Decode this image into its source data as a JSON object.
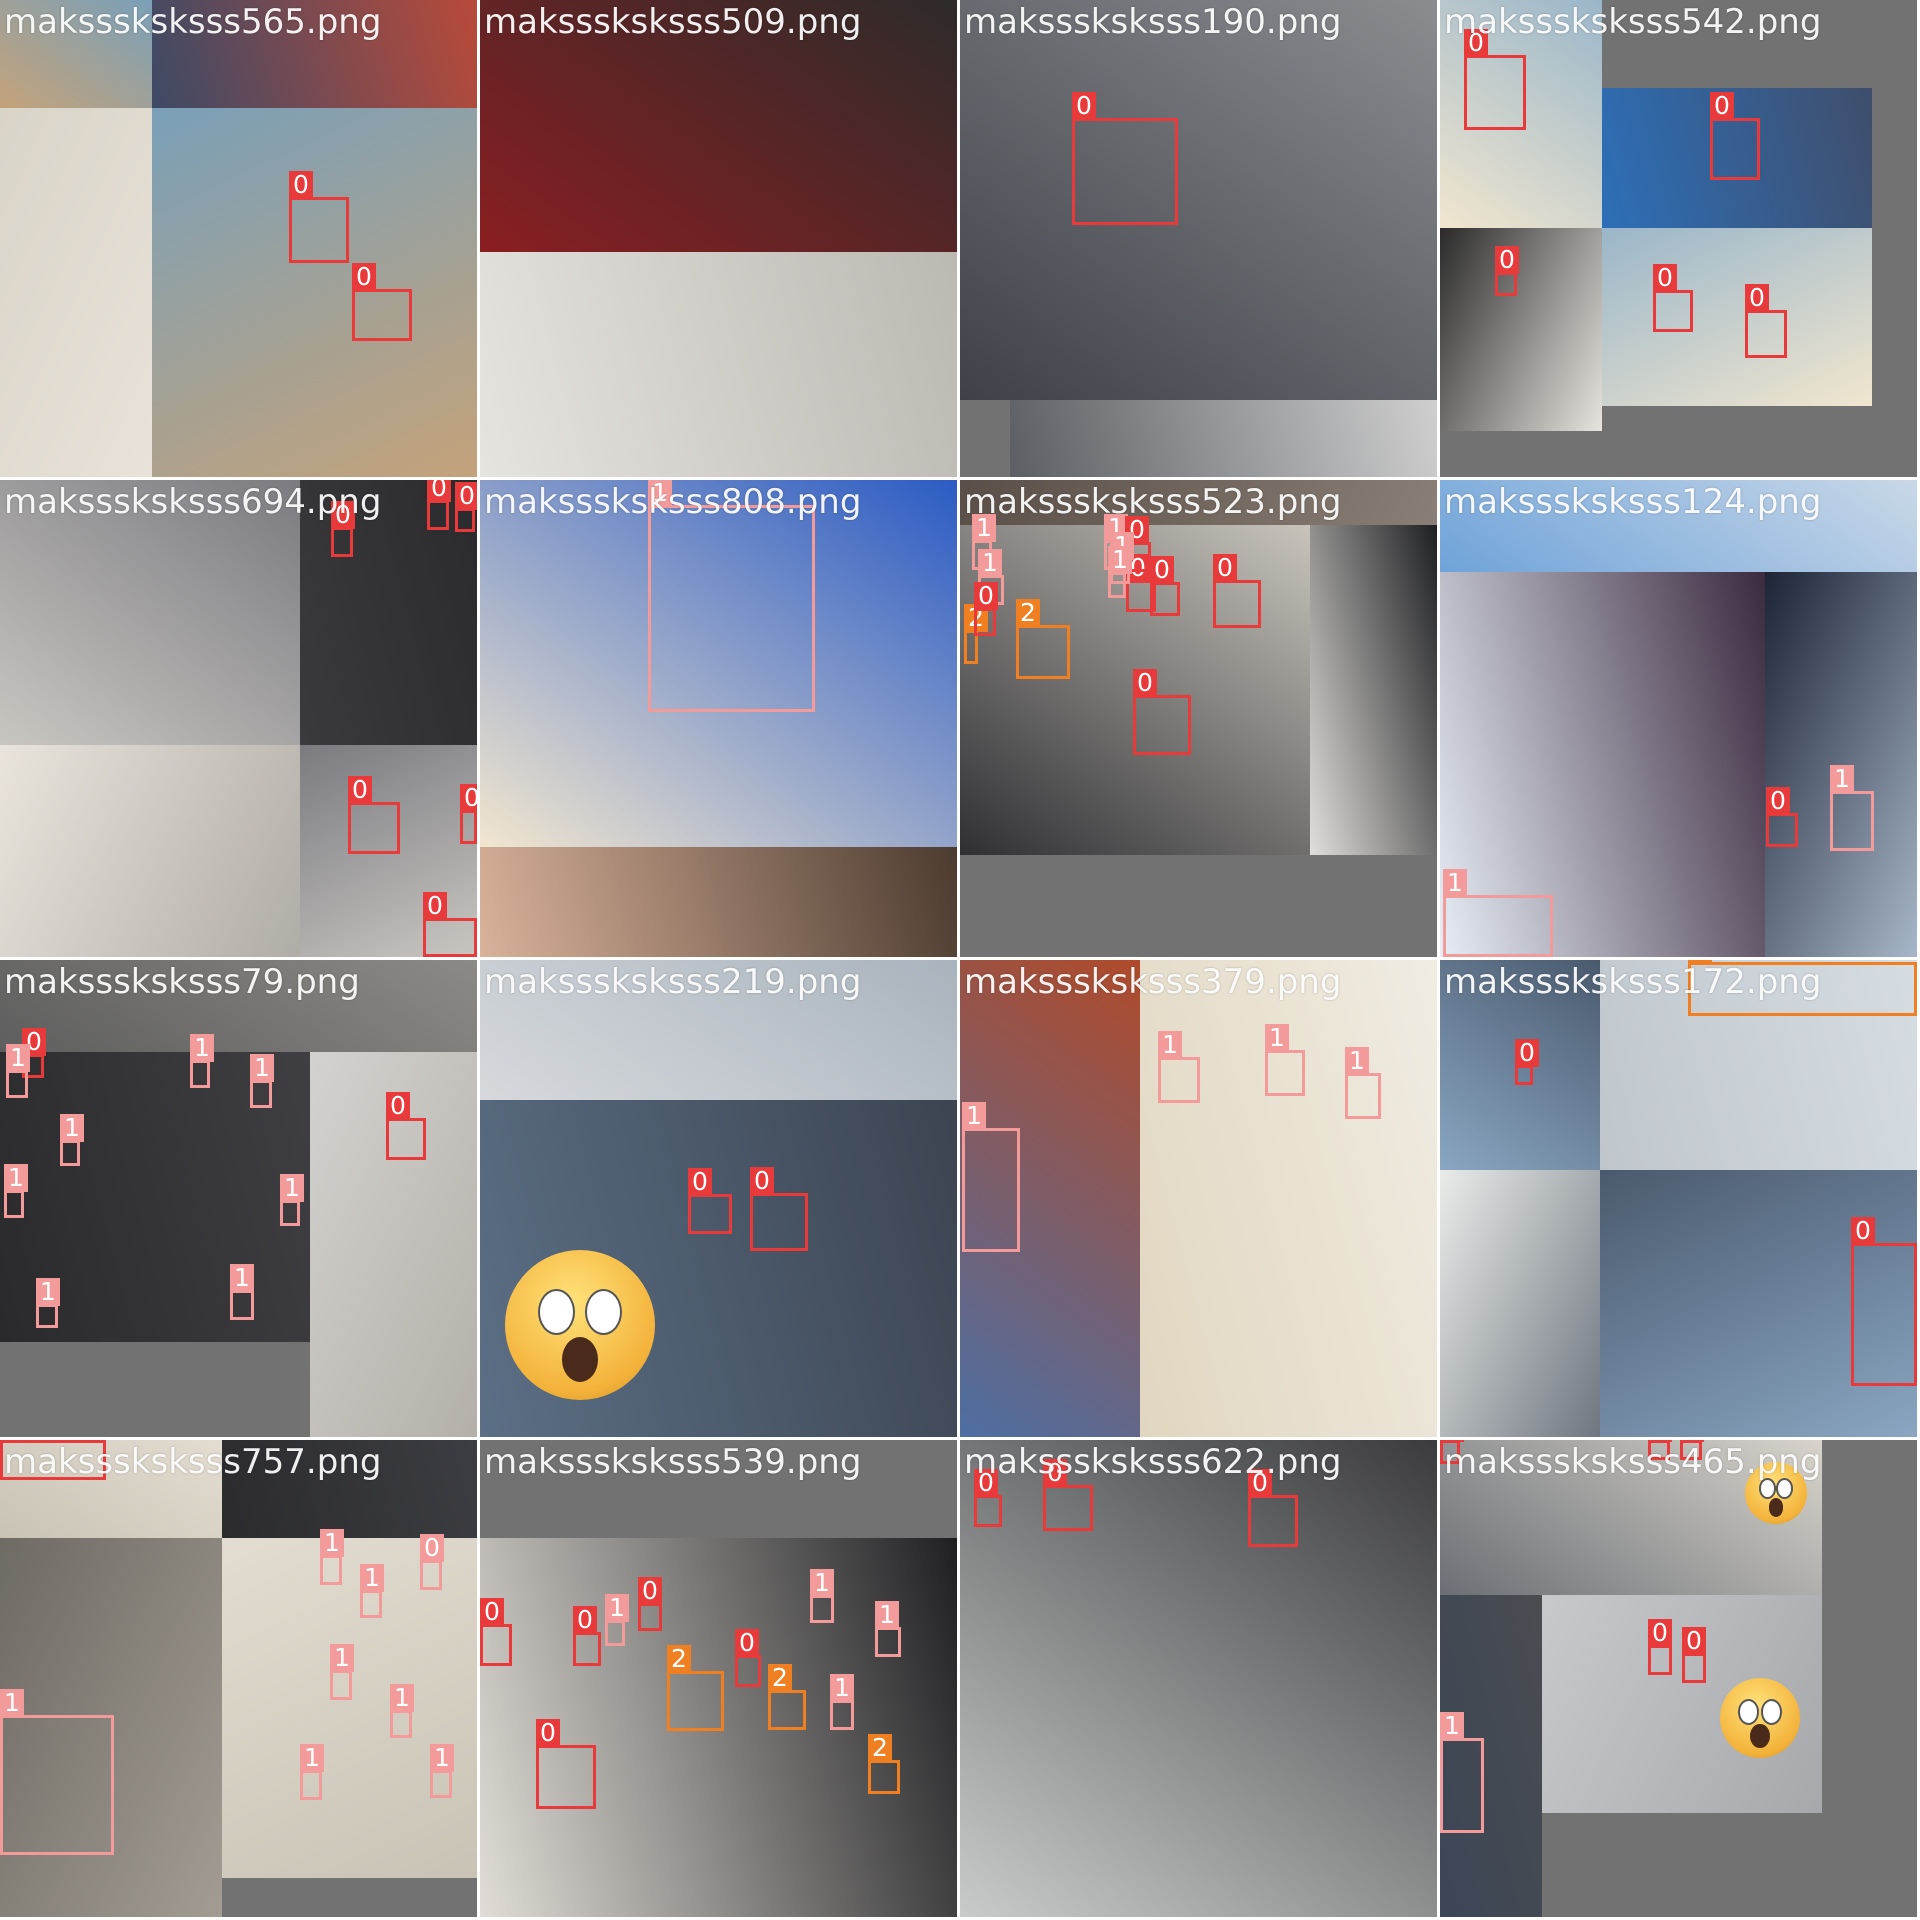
{
  "tiles": [
    {
      "filename": "maksssksksss565.png",
      "colors": [
        "#c4a27a",
        "#3d4a66",
        "#d9d4c8",
        "#7aa0b8",
        "#b84a3a",
        "#e8e2d8"
      ]
    },
    {
      "filename": "maksssksksss509.png",
      "colors": [
        "#8a1e22",
        "#e6e4df",
        "#4a4846",
        "#2d2b2a",
        "#bcb8b2",
        "#6e6a66"
      ]
    },
    {
      "filename": "maksssksksss190.png",
      "colors": [
        "#3e4148",
        "#5b5e63",
        "#2a2c30",
        "#8a8c90",
        "#cfcfcf",
        "#1f1f22"
      ]
    },
    {
      "filename": "maksssksksss542.png",
      "colors": [
        "#f1e6cf",
        "#2d6fb8",
        "#2a2a2a",
        "#9ab6c9",
        "#3f4e6b",
        "#e8e4df"
      ]
    },
    {
      "filename": "maksssksksss694.png",
      "colors": [
        "#c9c6c1",
        "#3a3a3c",
        "#e9e4dc",
        "#7a7a80",
        "#2b2b2e",
        "#b0aca6"
      ]
    },
    {
      "filename": "maksssksksss808.png",
      "colors": [
        "#f1e6cf",
        "#d9b29a",
        "#8fb4c2",
        "#2b5bc4",
        "#4c3b30",
        "#eae0cf"
      ]
    },
    {
      "filename": "maksssksksss523.png",
      "colors": [
        "#2f2f33",
        "#e1dfdb",
        "#5a4f48",
        "#c8c4bc",
        "#1e1f22",
        "#8a7f76"
      ]
    },
    {
      "filename": "maksssksksss124.png",
      "colors": [
        "#6fa3d9",
        "#e7eef5",
        "#1c2436",
        "#c9d8e8",
        "#3b2a40",
        "#a7b6c8"
      ]
    },
    {
      "filename": "maksssksksss79.png",
      "colors": [
        "#5e5e5e",
        "#2a2a2c",
        "#d4d2cf",
        "#8c8a86",
        "#3f3f43",
        "#b4b0a9"
      ]
    },
    {
      "filename": "maksssksksss219.png",
      "colors": [
        "#d6d9dc",
        "#5b6f86",
        "#6b7b8c",
        "#a9b3bd",
        "#3c4450",
        "#e2dcd2"
      ]
    },
    {
      "filename": "maksssksksss379.png",
      "colors": [
        "#4d6fa3",
        "#e1d6c0",
        "#2a2a2c",
        "#b04a2a",
        "#f0ece2",
        "#7a5a3a"
      ]
    },
    {
      "filename": "maksssksksss172.png",
      "colors": [
        "#8aa6c2",
        "#bfc6cc",
        "#e9ece9",
        "#4a5a6e",
        "#d6dde2",
        "#6f7680"
      ]
    },
    {
      "filename": "maksssksksss757.png",
      "colors": [
        "#c9c3b6",
        "#2b2b2e",
        "#6e6a64",
        "#e3ddd1",
        "#3c3d42",
        "#a29c92"
      ]
    },
    {
      "filename": "maksssksksss539.png",
      "colors": [
        "#2b2b2e",
        "#e1ddd6",
        "#5b4e44",
        "#7a7f87",
        "#1f1f22",
        "#c79b7a"
      ]
    },
    {
      "filename": "maksssksksss622.png",
      "colors": [
        "#c8cbc9",
        "#e6e2dc",
        "#5a6a7a",
        "#3b3b3e",
        "#9aa4ae",
        "#7b6f64"
      ]
    },
    {
      "filename": "maksssksksss465.png",
      "colors": [
        "#6b6f75",
        "#3b4656",
        "#c7c9cc",
        "#d8d4cc",
        "#4a4c50",
        "#a6a8ab"
      ]
    }
  ],
  "classes": {
    "0": "0",
    "1": "1",
    "2": "2"
  },
  "label_colors": {
    "0": "#e83a3a",
    "1": "#f39a9a",
    "2": "#f07f22"
  }
}
